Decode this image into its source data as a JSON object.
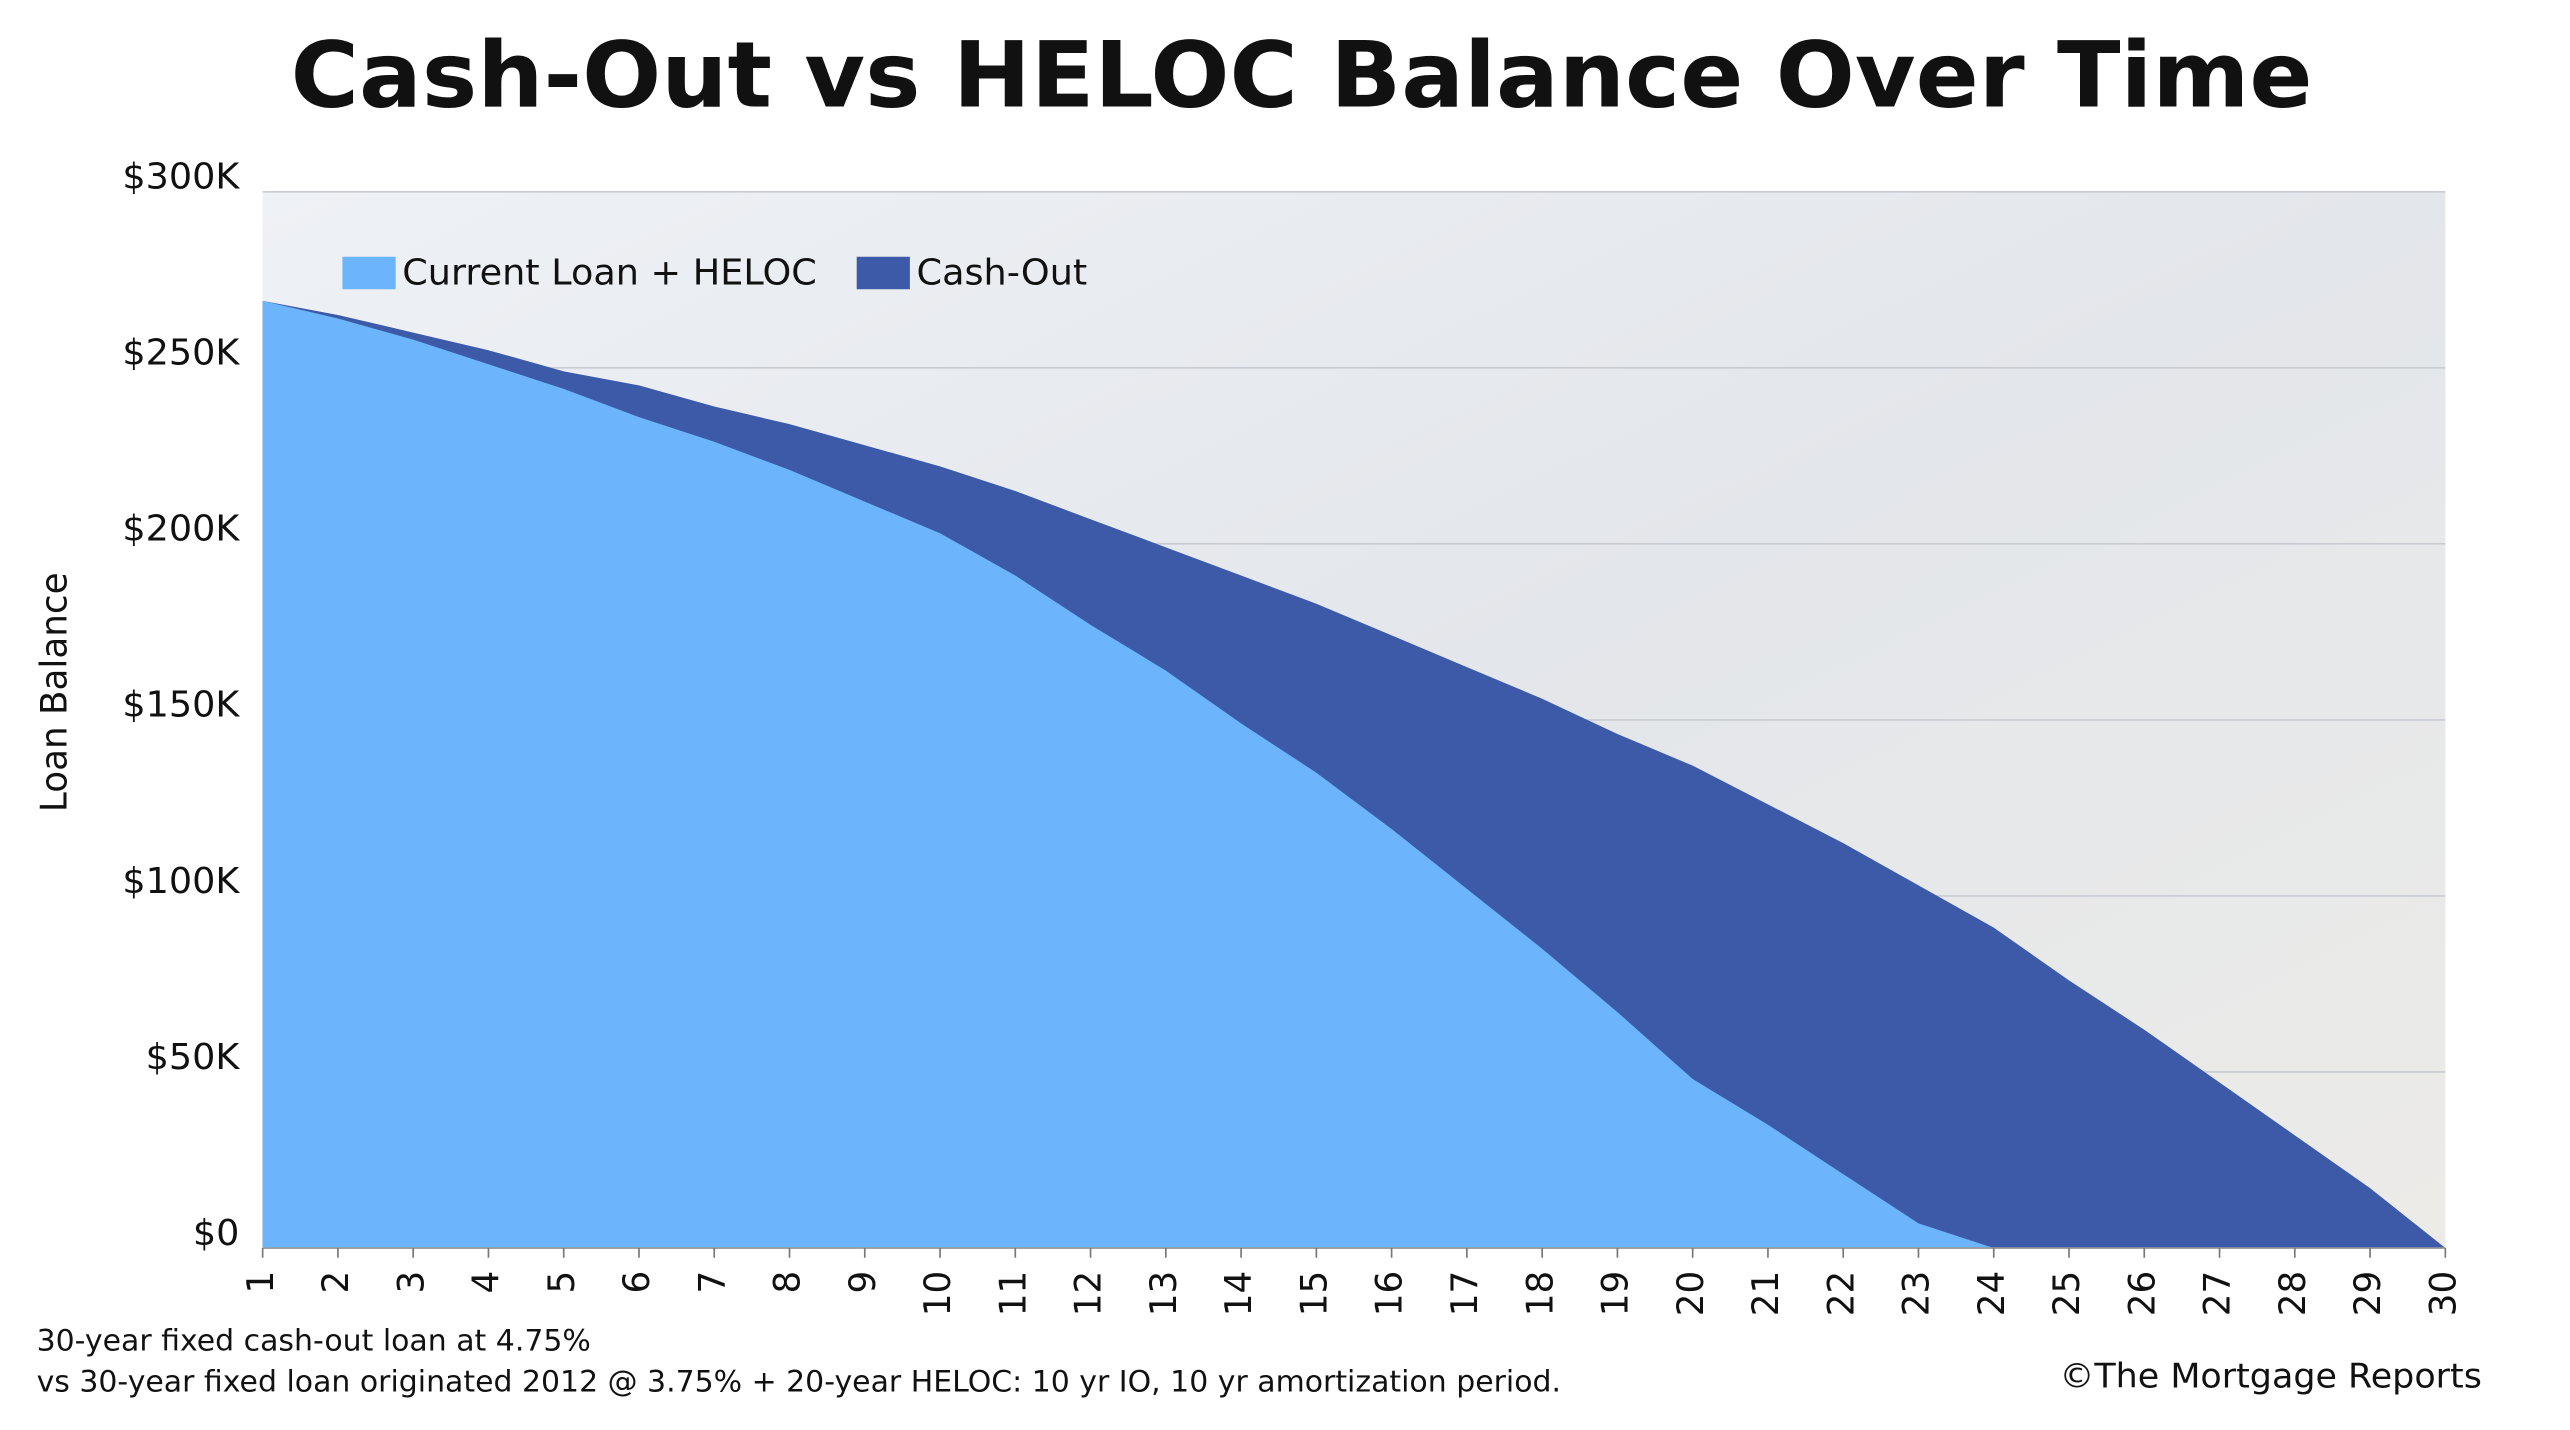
{
  "chart_data": {
    "type": "area",
    "title": "Cash-Out vs HELOC Balance Over Time",
    "y_label": "Loan Balance",
    "notes": [
      "30-year fixed cash-out loan at 4.75%",
      "vs 30-year fixed loan originated 2012 @ 3.75% + 20-year HELOC: 10 yr IO, 10 yr amortization period."
    ],
    "source": "©The Mortgage Reports",
    "x": [
      1,
      2,
      3,
      4,
      5,
      6,
      7,
      8,
      9,
      10,
      11,
      12,
      13,
      14,
      15,
      16,
      17,
      18,
      19,
      20,
      21,
      22,
      23,
      24,
      25,
      26,
      27,
      28,
      29,
      30
    ],
    "xlim": [
      1,
      30
    ],
    "xticks": [
      1,
      2,
      3,
      4,
      5,
      6,
      7,
      8,
      9,
      10,
      11,
      12,
      13,
      14,
      15,
      16,
      17,
      18,
      19,
      20,
      21,
      22,
      23,
      24,
      25,
      26,
      27,
      28,
      29,
      30
    ],
    "ylim": [
      0,
      300000
    ],
    "yticks": [
      {
        "value": 0,
        "label": "$0"
      },
      {
        "value": 50000,
        "label": "$50K"
      },
      {
        "value": 100000,
        "label": "$100K"
      },
      {
        "value": 150000,
        "label": "$150K"
      },
      {
        "value": 200000,
        "label": "$200K"
      },
      {
        "value": 250000,
        "label": "$250K"
      },
      {
        "value": 300000,
        "label": "$300K"
      }
    ],
    "grid": true,
    "legend": "top-left",
    "series": [
      {
        "name": "Current Loan + HELOC",
        "color": "#6cb4fc",
        "values": [
          269000,
          264000,
          258000,
          251000,
          244000,
          236000,
          229000,
          221000,
          212000,
          203000,
          191000,
          177000,
          164000,
          149000,
          135000,
          119000,
          102000,
          85000,
          67000,
          48000,
          35000,
          21000,
          7000,
          0,
          0,
          0,
          0,
          0,
          0,
          0
        ]
      },
      {
        "name": "Cash-Out",
        "color": "#3d5aa8",
        "values": [
          269000,
          265000,
          260000,
          255000,
          249000,
          245000,
          239000,
          234000,
          228000,
          222000,
          215000,
          207000,
          199000,
          191000,
          183000,
          174000,
          165000,
          156000,
          146000,
          137000,
          126000,
          115000,
          103000,
          91000,
          76000,
          62000,
          47000,
          32000,
          17000,
          0
        ]
      }
    ]
  }
}
